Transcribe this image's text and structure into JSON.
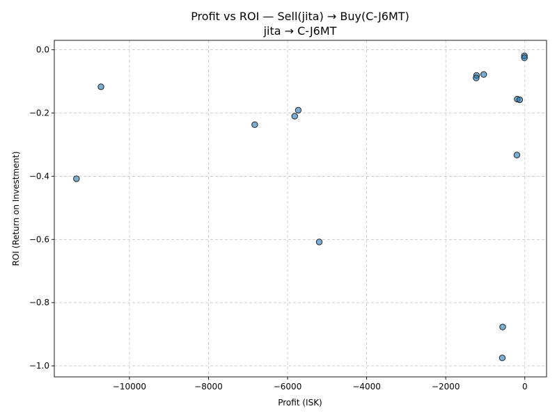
{
  "chart_data": {
    "type": "scatter",
    "title": "Profit vs ROI — Sell(jita) → Buy(C-J6MT)",
    "subtitle": "jita → C-J6MT",
    "xlabel": "Profit (ISK)",
    "ylabel": "ROI (Return on Investment)",
    "xlim": [
      -11900,
      550
    ],
    "ylim": [
      -1.035,
      0.03
    ],
    "xticks": [
      -10000,
      -8000,
      -6000,
      -4000,
      -2000,
      0
    ],
    "xtick_labels": [
      "−10000",
      "−8000",
      "−6000",
      "−4000",
      "−2000",
      "0"
    ],
    "yticks": [
      -1.0,
      -0.8,
      -0.6,
      -0.4,
      -0.2,
      0.0
    ],
    "ytick_labels": [
      "−1.0",
      "−0.8",
      "−0.6",
      "−0.4",
      "−0.2",
      "0.0"
    ],
    "grid": true,
    "colors": {
      "marker": "#1f77b4",
      "edge": "#222222"
    },
    "points": [
      {
        "x": -10720,
        "y": -0.117
      },
      {
        "x": -11340,
        "y": -0.408
      },
      {
        "x": -6830,
        "y": -0.237
      },
      {
        "x": -5820,
        "y": -0.21
      },
      {
        "x": -5730,
        "y": -0.191
      },
      {
        "x": -5200,
        "y": -0.608
      },
      {
        "x": -1220,
        "y": -0.081
      },
      {
        "x": -1230,
        "y": -0.089
      },
      {
        "x": -1040,
        "y": -0.078
      },
      {
        "x": -190,
        "y": -0.156
      },
      {
        "x": -130,
        "y": -0.158
      },
      {
        "x": -200,
        "y": -0.333
      },
      {
        "x": -560,
        "y": -0.877
      },
      {
        "x": -570,
        "y": -0.975
      },
      {
        "x": -10,
        "y": -0.019
      },
      {
        "x": -10,
        "y": -0.025
      }
    ]
  }
}
